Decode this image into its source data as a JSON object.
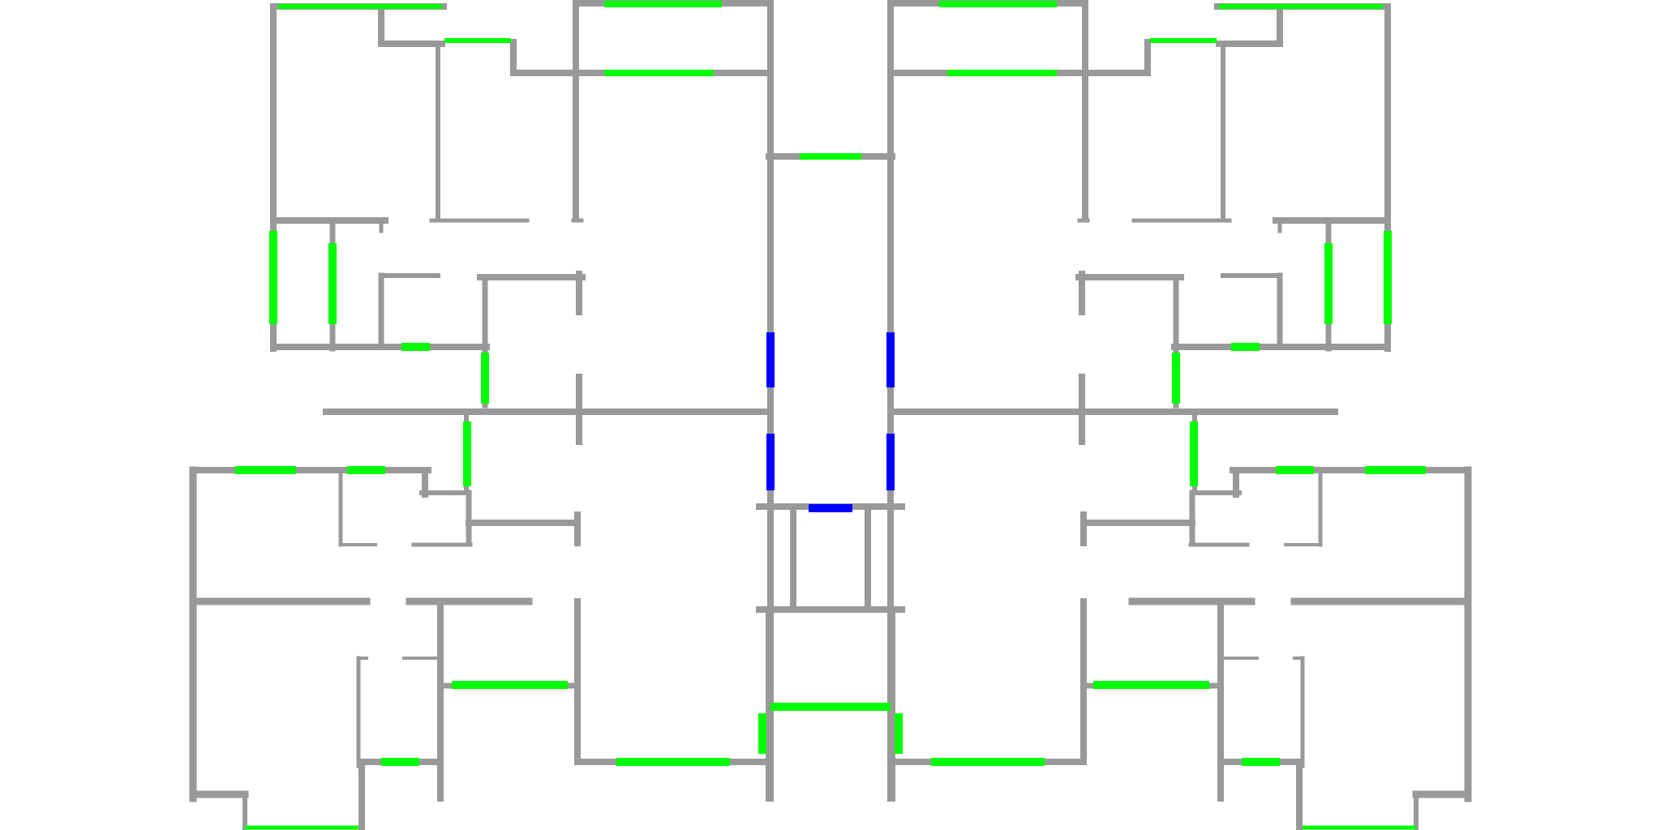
{
  "diagram": {
    "type": "floor-plan",
    "colors": {
      "background": "#ffffff",
      "wall": "#999999",
      "window": "#00ff00",
      "door": "#0000ff"
    },
    "element_kinds": [
      "wall",
      "window",
      "door"
    ]
  }
}
